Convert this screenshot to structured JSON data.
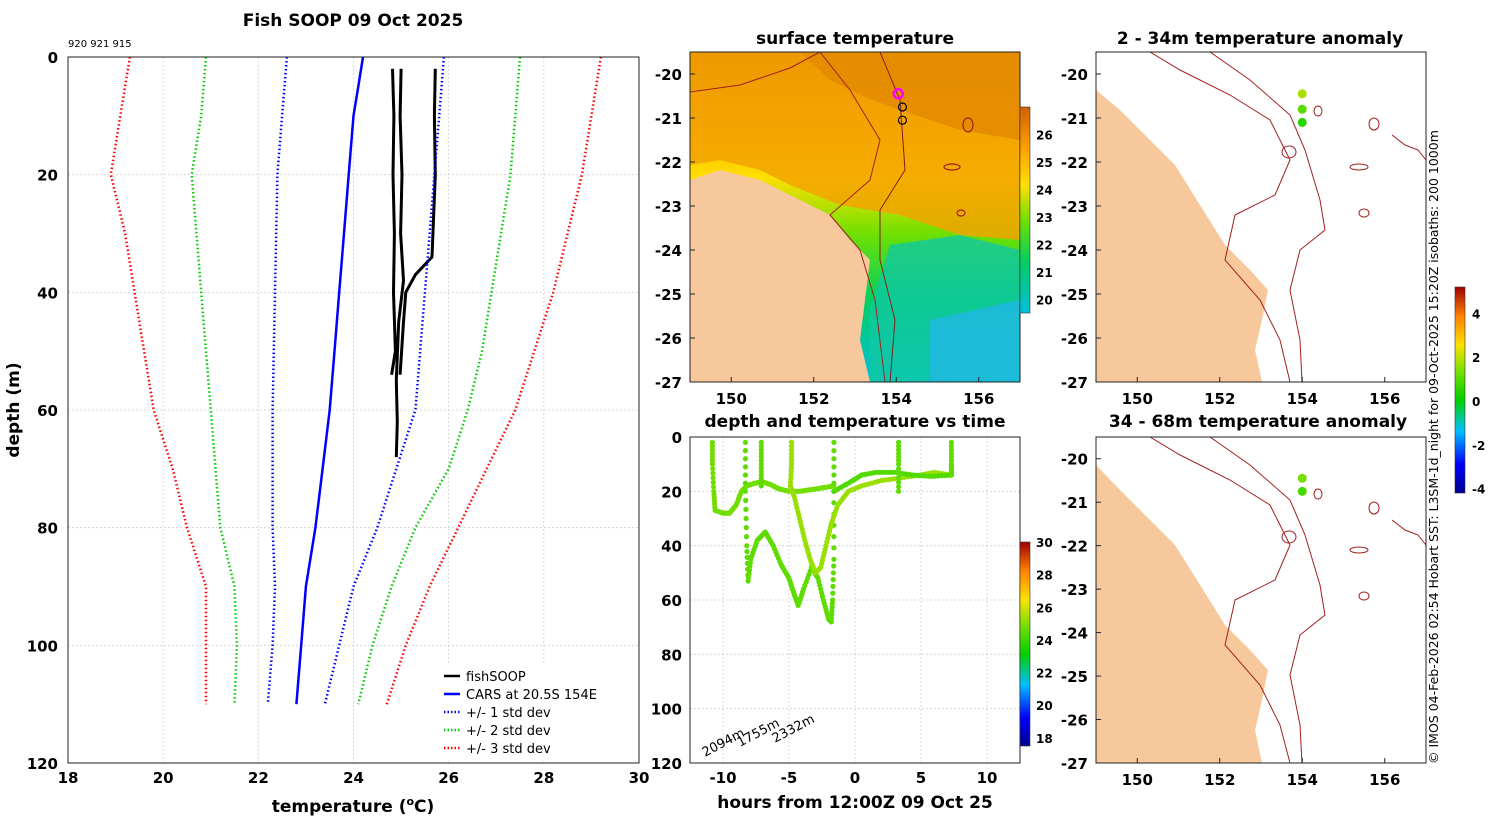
{
  "chart_data": [
    {
      "type": "line",
      "title": "Fish SOOP 09 Oct 2025",
      "subtitle": "920 921 915",
      "xlabel": "temperature (",
      "xlabel_sup": "o",
      "xlabel_unit": "C)",
      "ylabel": "depth (m)",
      "xlim": [
        18,
        30
      ],
      "ylim": [
        120,
        0
      ],
      "xticks": [
        "18",
        "20",
        "22",
        "24",
        "26",
        "28",
        "30"
      ],
      "yticks": [
        "0",
        "20",
        "40",
        "60",
        "80",
        "100",
        "120"
      ],
      "legend_position": "bottom-right",
      "series": [
        {
          "name": "fishSOOP",
          "color": "#000000",
          "style": "solid",
          "points": [
            [
              24.82,
              2
            ],
            [
              24.85,
              10
            ],
            [
              24.83,
              20
            ],
            [
              24.86,
              30
            ],
            [
              24.84,
              40
            ],
            [
              24.88,
              50
            ],
            [
              24.8,
              54
            ]
          ]
        },
        {
          "name": "fishSOOP",
          "color": "#000000",
          "style": "solid",
          "points": [
            [
              25.0,
              2
            ],
            [
              24.98,
              10
            ],
            [
              25.02,
              20
            ],
            [
              24.99,
              30
            ],
            [
              25.05,
              38
            ],
            [
              24.95,
              45
            ],
            [
              24.9,
              55
            ],
            [
              24.92,
              62
            ],
            [
              24.9,
              68
            ]
          ]
        },
        {
          "name": "fishSOOP",
          "color": "#000000",
          "style": "solid",
          "points": [
            [
              25.72,
              2
            ],
            [
              25.7,
              10
            ],
            [
              25.72,
              20
            ],
            [
              25.68,
              28
            ],
            [
              25.65,
              34
            ],
            [
              25.3,
              37
            ],
            [
              25.1,
              40
            ],
            [
              25.05,
              45
            ],
            [
              24.98,
              54
            ]
          ]
        },
        {
          "name": "CARS at 20.5S 154E",
          "color": "#0000ff",
          "style": "solid",
          "points": [
            [
              24.2,
              0
            ],
            [
              24.1,
              5
            ],
            [
              24.0,
              10
            ],
            [
              23.9,
              20
            ],
            [
              23.8,
              30
            ],
            [
              23.7,
              40
            ],
            [
              23.6,
              50
            ],
            [
              23.5,
              60
            ],
            [
              23.35,
              70
            ],
            [
              23.2,
              80
            ],
            [
              23.0,
              90
            ],
            [
              22.9,
              100
            ],
            [
              22.8,
              110
            ]
          ]
        },
        {
          "name": "+/- 1 std dev",
          "color": "#0000ff",
          "style": "dotted",
          "points": [
            [
              22.6,
              0
            ],
            [
              22.5,
              10
            ],
            [
              22.4,
              20
            ],
            [
              22.35,
              40
            ],
            [
              22.3,
              60
            ],
            [
              22.3,
              80
            ],
            [
              22.35,
              90
            ],
            [
              22.3,
              100
            ],
            [
              22.2,
              110
            ]
          ]
        },
        {
          "name": "+/- 1 std dev",
          "color": "#0000ff",
          "style": "dotted",
          "points": [
            [
              25.9,
              0
            ],
            [
              25.8,
              10
            ],
            [
              25.7,
              20
            ],
            [
              25.5,
              40
            ],
            [
              25.3,
              60
            ],
            [
              24.9,
              70
            ],
            [
              24.5,
              80
            ],
            [
              24.0,
              90
            ],
            [
              23.7,
              100
            ],
            [
              23.4,
              110
            ]
          ]
        },
        {
          "name": "+/- 2 std dev",
          "color": "#00cc00",
          "style": "dotted",
          "points": [
            [
              20.9,
              0
            ],
            [
              20.8,
              10
            ],
            [
              20.6,
              20
            ],
            [
              20.7,
              30
            ],
            [
              20.8,
              40
            ],
            [
              20.9,
              50
            ],
            [
              21.0,
              60
            ],
            [
              21.1,
              70
            ],
            [
              21.2,
              80
            ],
            [
              21.5,
              90
            ],
            [
              21.55,
              100
            ],
            [
              21.5,
              110
            ]
          ]
        },
        {
          "name": "+/- 2 std dev",
          "color": "#00cc00",
          "style": "dotted",
          "points": [
            [
              27.5,
              0
            ],
            [
              27.4,
              10
            ],
            [
              27.3,
              20
            ],
            [
              27.1,
              30
            ],
            [
              26.9,
              40
            ],
            [
              26.7,
              50
            ],
            [
              26.4,
              60
            ],
            [
              26.0,
              70
            ],
            [
              25.3,
              80
            ],
            [
              24.8,
              90
            ],
            [
              24.4,
              100
            ],
            [
              24.1,
              110
            ]
          ]
        },
        {
          "name": "+/- 3 std dev",
          "color": "#ff0000",
          "style": "dotted",
          "points": [
            [
              19.3,
              0
            ],
            [
              19.1,
              10
            ],
            [
              18.9,
              20
            ],
            [
              19.2,
              30
            ],
            [
              19.4,
              40
            ],
            [
              19.6,
              50
            ],
            [
              19.8,
              60
            ],
            [
              20.2,
              70
            ],
            [
              20.5,
              80
            ],
            [
              20.9,
              90
            ],
            [
              20.9,
              100
            ],
            [
              20.9,
              110
            ]
          ]
        },
        {
          "name": "+/- 3 std dev",
          "color": "#ff0000",
          "style": "dotted",
          "points": [
            [
              29.2,
              0
            ],
            [
              29.0,
              10
            ],
            [
              28.8,
              20
            ],
            [
              28.5,
              30
            ],
            [
              28.2,
              40
            ],
            [
              27.8,
              50
            ],
            [
              27.4,
              60
            ],
            [
              26.8,
              70
            ],
            [
              26.2,
              80
            ],
            [
              25.6,
              90
            ],
            [
              25.1,
              100
            ],
            [
              24.7,
              110
            ]
          ]
        }
      ],
      "legend": [
        {
          "label": "fishSOOP",
          "color": "#000000",
          "style": "solid"
        },
        {
          "label": "CARS at 20.5S 154E",
          "color": "#0000ff",
          "style": "solid"
        },
        {
          "label": "+/- 1 std dev",
          "color": "#0000ff",
          "style": "dotted"
        },
        {
          "label": "+/- 2 std dev",
          "color": "#00cc00",
          "style": "dotted"
        },
        {
          "label": "+/- 3 std dev",
          "color": "#ff0000",
          "style": "dotted"
        }
      ]
    },
    {
      "type": "heatmap",
      "title": "surface temperature",
      "xlim": [
        149,
        157
      ],
      "ylim": [
        -27,
        -19.5
      ],
      "xticks": [
        "150",
        "152",
        "154",
        "156"
      ],
      "yticks": [
        "-20",
        "-21",
        "-22",
        "-23",
        "-24",
        "-25",
        "-26",
        "-27"
      ],
      "colorbar": {
        "range": [
          19.5,
          27
        ],
        "ticks": [
          "20",
          "21",
          "22",
          "23",
          "24",
          "25",
          "26"
        ]
      },
      "markers": [
        {
          "lon": 154.05,
          "lat": -20.45,
          "color": "#ff00ff",
          "note": "fishSOOP location"
        },
        {
          "lon": 154.15,
          "lat": -20.75,
          "color": "#000000"
        },
        {
          "lon": 154.15,
          "lat": -21.05,
          "color": "#000000"
        }
      ]
    },
    {
      "type": "scatter",
      "title": "depth and temperature vs time",
      "xlabel": "hours from 12:00Z 09 Oct 25",
      "xlim": [
        -12.5,
        12.5
      ],
      "ylim": [
        120,
        0
      ],
      "xticks": [
        "-10",
        "-5",
        "0",
        "5",
        "10"
      ],
      "yticks": [
        "0",
        "20",
        "40",
        "60",
        "80",
        "100",
        "120"
      ],
      "annotations": [
        "2094m",
        "1755m",
        "2332m"
      ],
      "colorbar": {
        "range": [
          17.5,
          30
        ],
        "ticks": [
          "18",
          "20",
          "22",
          "24",
          "26",
          "28",
          "30"
        ]
      },
      "series": [
        {
          "name": "profile 1",
          "temp": 24.8,
          "points": [
            [
              -10.8,
              2
            ],
            [
              -10.8,
              10
            ],
            [
              -10.7,
              20
            ],
            [
              -10.6,
              27
            ],
            [
              -10.0,
              28
            ],
            [
              -9.5,
              28
            ],
            [
              -9.0,
              25
            ],
            [
              -8.6,
              20
            ],
            [
              -8.2,
              18
            ],
            [
              -7.6,
              17
            ],
            [
              -7.0,
              16.5
            ],
            [
              -6.4,
              17.5
            ],
            [
              -5.8,
              19
            ],
            [
              -5.0,
              20
            ],
            [
              -4.2,
              20
            ],
            [
              -3.5,
              19.5
            ],
            [
              -2.8,
              19
            ],
            [
              -2.2,
              18.5
            ],
            [
              -1.6,
              18
            ]
          ]
        },
        {
          "name": "profile 2",
          "temp": 24.5,
          "points": [
            [
              -8.3,
              2
            ],
            [
              -8.3,
              20
            ],
            [
              -8.2,
              40
            ],
            [
              -8.1,
              53
            ],
            [
              -7.9,
              45
            ],
            [
              -7.4,
              38
            ],
            [
              -6.8,
              35
            ],
            [
              -6.2,
              40
            ],
            [
              -5.6,
              47
            ],
            [
              -5.0,
              52
            ],
            [
              -4.6,
              58
            ],
            [
              -4.3,
              62
            ],
            [
              -3.9,
              56
            ],
            [
              -3.3,
              48
            ],
            [
              -2.8,
              52
            ],
            [
              -2.4,
              60
            ],
            [
              -2.0,
              67
            ],
            [
              -1.8,
              68
            ]
          ]
        },
        {
          "name": "profile 3",
          "temp": 24.5,
          "points": [
            [
              -1.6,
              2
            ],
            [
              -1.6,
              20
            ],
            [
              -1.6,
              45
            ],
            [
              -1.7,
              60
            ],
            [
              -1.8,
              68
            ]
          ]
        },
        {
          "name": "profile 4",
          "temp": 25.3,
          "points": [
            [
              -4.8,
              2
            ],
            [
              -4.8,
              10
            ],
            [
              -4.9,
              18
            ],
            [
              -4.6,
              22
            ],
            [
              -4.2,
              30
            ],
            [
              -3.8,
              38
            ],
            [
              -3.4,
              45
            ],
            [
              -3.0,
              50
            ],
            [
              -2.6,
              48
            ],
            [
              -2.2,
              40
            ],
            [
              -1.8,
              32
            ],
            [
              -1.3,
              25
            ],
            [
              -0.5,
              20
            ],
            [
              0.5,
              18
            ],
            [
              2.0,
              16
            ],
            [
              3.5,
              15
            ],
            [
              5.0,
              14
            ],
            [
              6.0,
              13
            ],
            [
              7.3,
              14
            ]
          ]
        },
        {
          "name": "profile 5",
          "temp": 24.3,
          "points": [
            [
              -1.6,
              20
            ],
            [
              -0.5,
              17
            ],
            [
              0.5,
              14
            ],
            [
              1.6,
              13
            ],
            [
              3.0,
              13
            ],
            [
              4.4,
              14
            ],
            [
              5.8,
              14.5
            ],
            [
              7.3,
              14
            ]
          ]
        },
        {
          "name": "profile 6",
          "temp": 24.5,
          "points": [
            [
              3.3,
              2
            ],
            [
              3.3,
              10
            ],
            [
              3.3,
              20
            ]
          ]
        },
        {
          "name": "profile 7",
          "temp": 24.5,
          "points": [
            [
              7.3,
              2
            ],
            [
              7.3,
              10
            ],
            [
              7.3,
              14
            ]
          ]
        },
        {
          "name": "profile 8",
          "temp": 24.5,
          "points": [
            [
              -7.1,
              2
            ],
            [
              -7.1,
              10
            ],
            [
              -7.1,
              18
            ]
          ]
        }
      ]
    },
    {
      "type": "heatmap",
      "title": "2 - 34m temperature anomaly",
      "xlim": [
        149,
        157
      ],
      "ylim": [
        -27,
        -19.5
      ],
      "xticks": [
        "150",
        "152",
        "154",
        "156"
      ],
      "yticks": [
        "-20",
        "-21",
        "-22",
        "-23",
        "-24",
        "-25",
        "-26",
        "-27"
      ],
      "points": [
        {
          "lon": 154.0,
          "lat": -20.45,
          "anomaly": 1.8
        },
        {
          "lon": 154.0,
          "lat": -20.8,
          "anomaly": 1.0
        },
        {
          "lon": 154.0,
          "lat": -21.1,
          "anomaly": 0.5
        }
      ]
    },
    {
      "type": "heatmap",
      "title": "34 - 68m temperature anomaly",
      "xlim": [
        149,
        157
      ],
      "ylim": [
        -27,
        -19.5
      ],
      "xticks": [
        "150",
        "152",
        "154",
        "156"
      ],
      "yticks": [
        "-20",
        "-21",
        "-22",
        "-23",
        "-24",
        "-25",
        "-26",
        "-27"
      ],
      "points": [
        {
          "lon": 154.0,
          "lat": -20.45,
          "anomaly": 1.3
        },
        {
          "lon": 154.0,
          "lat": -20.75,
          "anomaly": 0.8
        }
      ],
      "colorbar": {
        "range": [
          -4.2,
          5.2
        ],
        "ticks": [
          "4",
          "2",
          "0",
          "-2",
          "-4"
        ]
      }
    }
  ],
  "footer_text": "© IMOS 04-Feb-2026 02:54 Hobart SST: L3SM-1d_night for 09-Oct-2025 15:20Z isobaths: 200  1000m"
}
